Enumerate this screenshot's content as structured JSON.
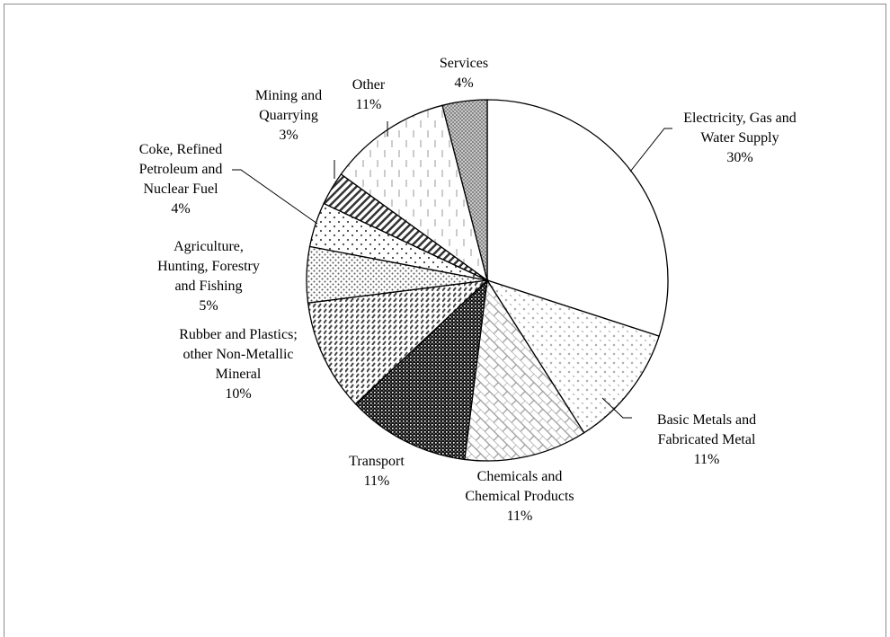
{
  "chart_data": {
    "type": "pie",
    "title": "",
    "slices": [
      {
        "label_lines": [
          "Electricity, Gas and",
          "Water Supply"
        ],
        "pct_label": "30%",
        "value": 30,
        "pattern": "none"
      },
      {
        "label_lines": [
          "Basic Metals and",
          "Fabricated Metal"
        ],
        "pct_label": "11%",
        "value": 11,
        "pattern": "dash-diag"
      },
      {
        "label_lines": [
          "Chemicals and",
          "Chemical Products"
        ],
        "pct_label": "11%",
        "value": 11,
        "pattern": "brick"
      },
      {
        "label_lines": [
          "Transport"
        ],
        "pct_label": "11%",
        "value": 11,
        "pattern": "dense-dots"
      },
      {
        "label_lines": [
          "Rubber and Plastics;",
          "other Non-Metallic",
          "Mineral"
        ],
        "pct_label": "10%",
        "value": 10,
        "pattern": "wide-diag"
      },
      {
        "label_lines": [
          "Agriculture,",
          "Hunting, Forestry",
          "and Fishing"
        ],
        "pct_label": "5%",
        "value": 5,
        "pattern": "small-dots"
      },
      {
        "label_lines": [
          "Coke, Refined",
          "Petroleum and",
          "Nuclear Fuel"
        ],
        "pct_label": "4%",
        "value": 4,
        "pattern": "sparse-dots"
      },
      {
        "label_lines": [
          "Mining and",
          "Quarrying"
        ],
        "pct_label": "3%",
        "value": 3,
        "pattern": "narrow-diag"
      },
      {
        "label_lines": [
          "Other"
        ],
        "pct_label": "11%",
        "value": 11,
        "pattern": "vert-dash"
      },
      {
        "label_lines": [
          "Services"
        ],
        "pct_label": "4%",
        "value": 4,
        "pattern": "crosshatch"
      }
    ]
  }
}
